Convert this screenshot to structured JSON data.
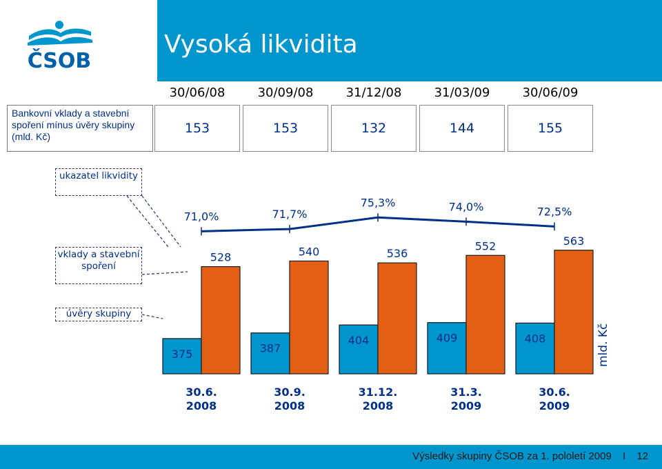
{
  "slide_title": "Vysoká likvidita",
  "brand": {
    "logo_text": "ČSOB",
    "colors": {
      "blue": "#0095cc",
      "navy": "#002f87",
      "orange": "#e35f14"
    }
  },
  "deposit_table": {
    "row_label": "Bankovní vklady a stavební spoření mínus úvěry skupiny (mld. Kč)",
    "dates": [
      "30/06/08",
      "30/09/08",
      "31/12/08",
      "31/03/09",
      "30/06/09"
    ],
    "values": [
      "153",
      "153",
      "132",
      "144",
      "155"
    ]
  },
  "legend_labels": {
    "liquidity": "ukazatel likvidity",
    "deposits": "vklady a stavební spoření",
    "loans": "úvěry skupiny"
  },
  "chart_data": {
    "type": "bar",
    "categories": [
      "30.6. 2008",
      "30.9. 2008",
      "31.12. 2008",
      "31.3. 2009",
      "30.6. 2009"
    ],
    "categories_lines": [
      [
        "30.6.",
        "2008"
      ],
      [
        "30.9.",
        "2008"
      ],
      [
        "31.12.",
        "2008"
      ],
      [
        "31.3.",
        "2009"
      ],
      [
        "30.6.",
        "2009"
      ]
    ],
    "series": [
      {
        "name": "úvěry skupiny",
        "values": [
          375,
          387,
          404,
          409,
          408
        ],
        "color": "#0095cc"
      },
      {
        "name": "vklady a stavební spoření",
        "values": [
          528,
          540,
          536,
          552,
          563
        ],
        "color": "#e35f14"
      }
    ],
    "line_series": {
      "name": "ukazatel likvidity",
      "values": [
        71.0,
        71.7,
        75.3,
        74.0,
        72.5
      ],
      "labels": [
        "71,0%",
        "71,7%",
        "75,3%",
        "74,0%",
        "72,5%"
      ]
    },
    "ylabel": "mld. Kč",
    "ylim": [
      300,
      570
    ]
  },
  "footer": {
    "text": "Výsledky skupiny ČSOB za 1. pololetí 2009",
    "separator": "I",
    "page": "12"
  }
}
